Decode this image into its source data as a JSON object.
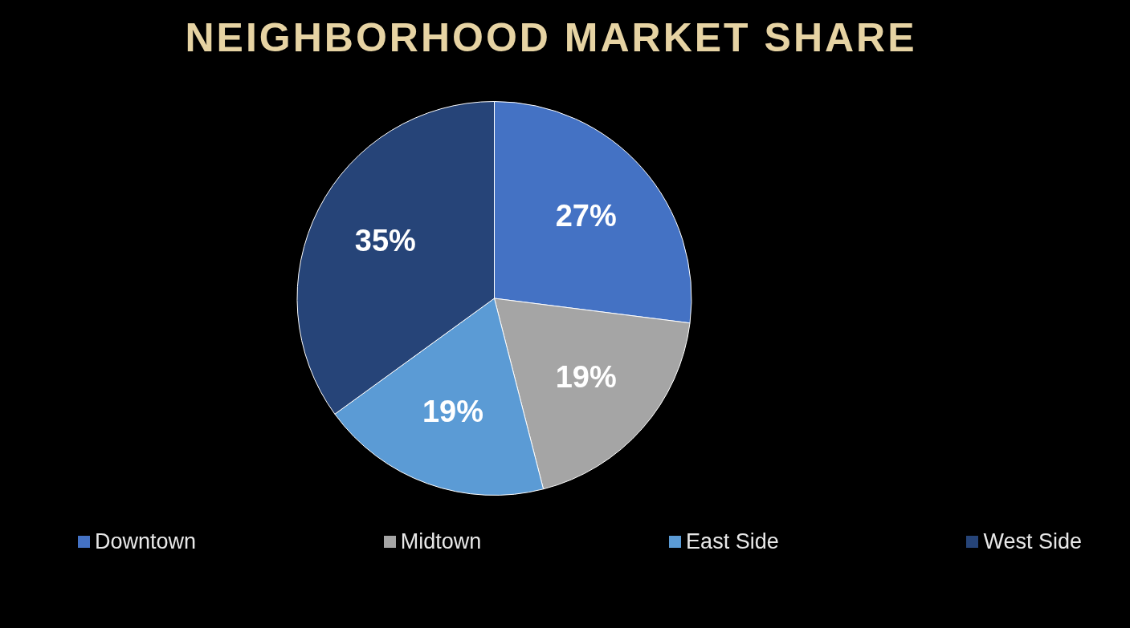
{
  "chart_data": {
    "type": "pie",
    "title": "NEIGHBORHOOD MARKET SHARE",
    "categories": [
      "Downtown",
      "Midtown",
      "East Side",
      "West Side"
    ],
    "values": [
      27,
      19,
      19,
      35
    ],
    "colors": [
      "#4472c4",
      "#a5a5a5",
      "#5b9bd5",
      "#264478"
    ],
    "value_labels": [
      "27%",
      "19%",
      "19%",
      "35%"
    ],
    "legend": "bottom"
  }
}
